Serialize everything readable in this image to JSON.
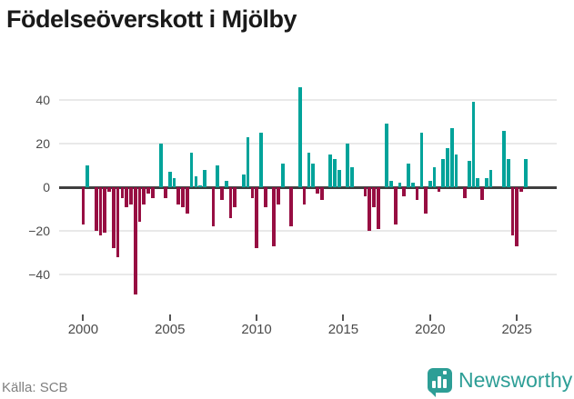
{
  "title": "Födelseöverskott i Mjölby",
  "source": "Källa: SCB",
  "branding": {
    "name": "Newsworthy",
    "color": "#2d9e96"
  },
  "colors": {
    "positive_bar": "#00a39a",
    "negative_bar": "#970e42",
    "zero_line": "#3f3f3f",
    "gridline": "#e9e9e9",
    "title_text": "#1a1a1a",
    "axis_text": "#4a4a4a",
    "source_text": "#7f7f7f"
  },
  "chart_data": {
    "type": "bar",
    "title": "Födelseöverskott i Mjölby",
    "frequency": "quarterly",
    "start_year": 2000,
    "x_tick_years": [
      2000,
      2005,
      2010,
      2015,
      2020,
      2025
    ],
    "y_ticks": [
      40,
      20,
      0,
      -20,
      -40
    ],
    "y_tick_labels": [
      "40",
      "20",
      "0",
      "−20",
      "−40"
    ],
    "ylim": [
      -52,
      48
    ],
    "grid": true,
    "legend": false,
    "values": [
      -17,
      10,
      0,
      -20,
      -22,
      -21,
      -2,
      -28,
      -32,
      -5,
      -9,
      -8,
      -49,
      -16,
      -8,
      -3,
      -5,
      0,
      20,
      -5,
      7,
      4,
      -8,
      -9,
      -12,
      16,
      5,
      1,
      8,
      0,
      -18,
      10,
      -6,
      3,
      -14,
      -9,
      0,
      6,
      23,
      -5,
      -28,
      25,
      -9,
      0,
      -27,
      -8,
      11,
      0,
      -18,
      0,
      46,
      -8,
      16,
      11,
      -3,
      -6,
      0,
      15,
      13,
      8,
      0,
      20,
      9,
      0,
      0,
      -4,
      -20,
      -9,
      -19,
      0,
      29,
      3,
      -17,
      2,
      -4,
      11,
      2,
      -6,
      25,
      -12,
      3,
      9,
      -2,
      13,
      18,
      27,
      15,
      0,
      -5,
      12,
      39,
      4,
      -6,
      4,
      8,
      0,
      0,
      26,
      13,
      -22,
      -27,
      -2,
      13
    ]
  }
}
